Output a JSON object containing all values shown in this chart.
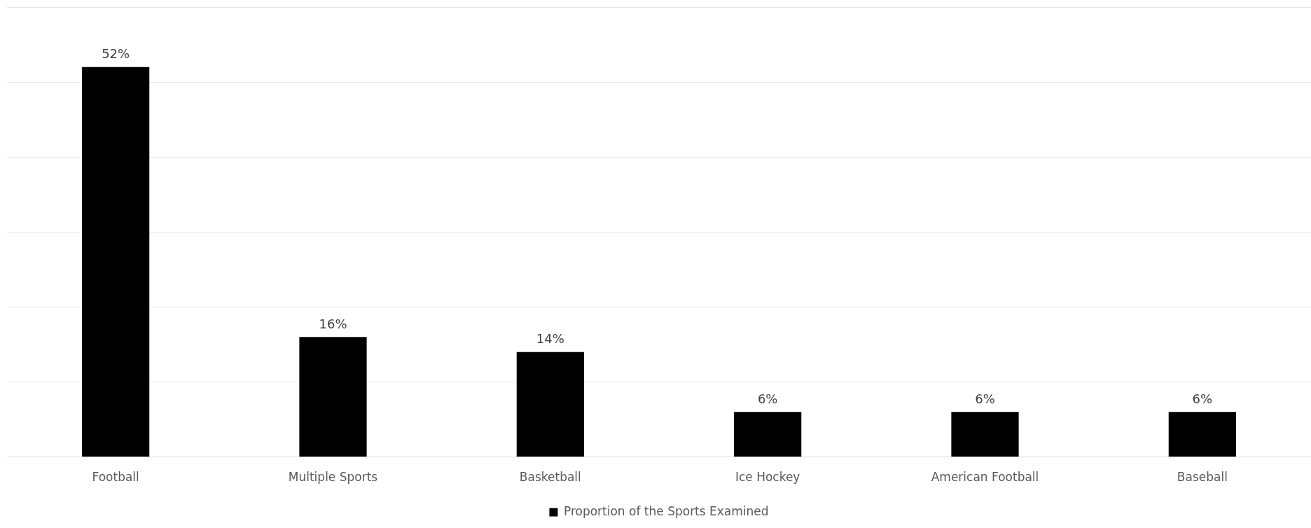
{
  "chart_data": {
    "type": "bar",
    "categories": [
      "Football",
      "Multiple Sports",
      "Basketball",
      "Ice Hockey",
      "American Football",
      "Baseball"
    ],
    "series": [
      {
        "name": "Proportion of the Sports Examined",
        "color": "#000000",
        "values": [
          52,
          16,
          14,
          6,
          6,
          6
        ],
        "value_labels": [
          "52%",
          "16%",
          "14%",
          "6%",
          "6%",
          "6%"
        ]
      }
    ],
    "ylim": [
      0,
      60
    ],
    "yticks": [
      {
        "value": 0,
        "label": null
      },
      {
        "value": 10,
        "label": null
      },
      {
        "value": 20,
        "label": null
      },
      {
        "value": 30,
        "label": null
      },
      {
        "value": 40,
        "label": null
      },
      {
        "value": 50,
        "label": null
      },
      {
        "value": 60,
        "label": null
      }
    ],
    "tick_labels": "x",
    "grid": "y",
    "legend": "bottom"
  }
}
